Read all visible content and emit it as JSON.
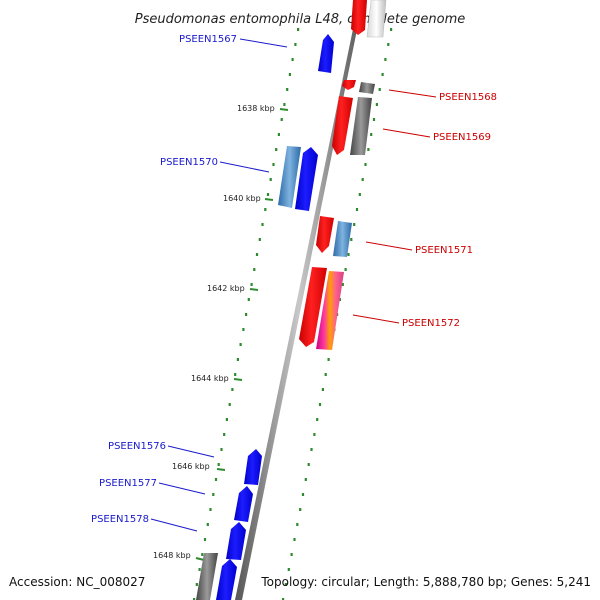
{
  "title": "Pseudomonas entomophila L48, complete genome",
  "accession": "Accession: NC_008027",
  "topology": "Topology: circular; Length: 5,888,780 bp; Genes: 5,241",
  "colors": {
    "forward": "#0000ff",
    "forward_light": "#4a8cc8",
    "reverse": "#ff0000",
    "grey_gene": "#707070",
    "tick": "#2e8b2e",
    "forward_label": "#1a1acc",
    "reverse_label": "#cc0000"
  },
  "kbp_labels": [
    "1638 kbp",
    "1640 kbp",
    "1642 kbp",
    "1644 kbp",
    "1646 kbp",
    "1648 kbp"
  ],
  "gene_labels": {
    "forward": [
      "PSEEN1567",
      "PSEEN1570",
      "PSEEN1576",
      "PSEEN1577",
      "PSEEN1578"
    ],
    "reverse": [
      "PSEEN1568",
      "PSEEN1569",
      "PSEEN1571",
      "PSEEN1572"
    ]
  }
}
